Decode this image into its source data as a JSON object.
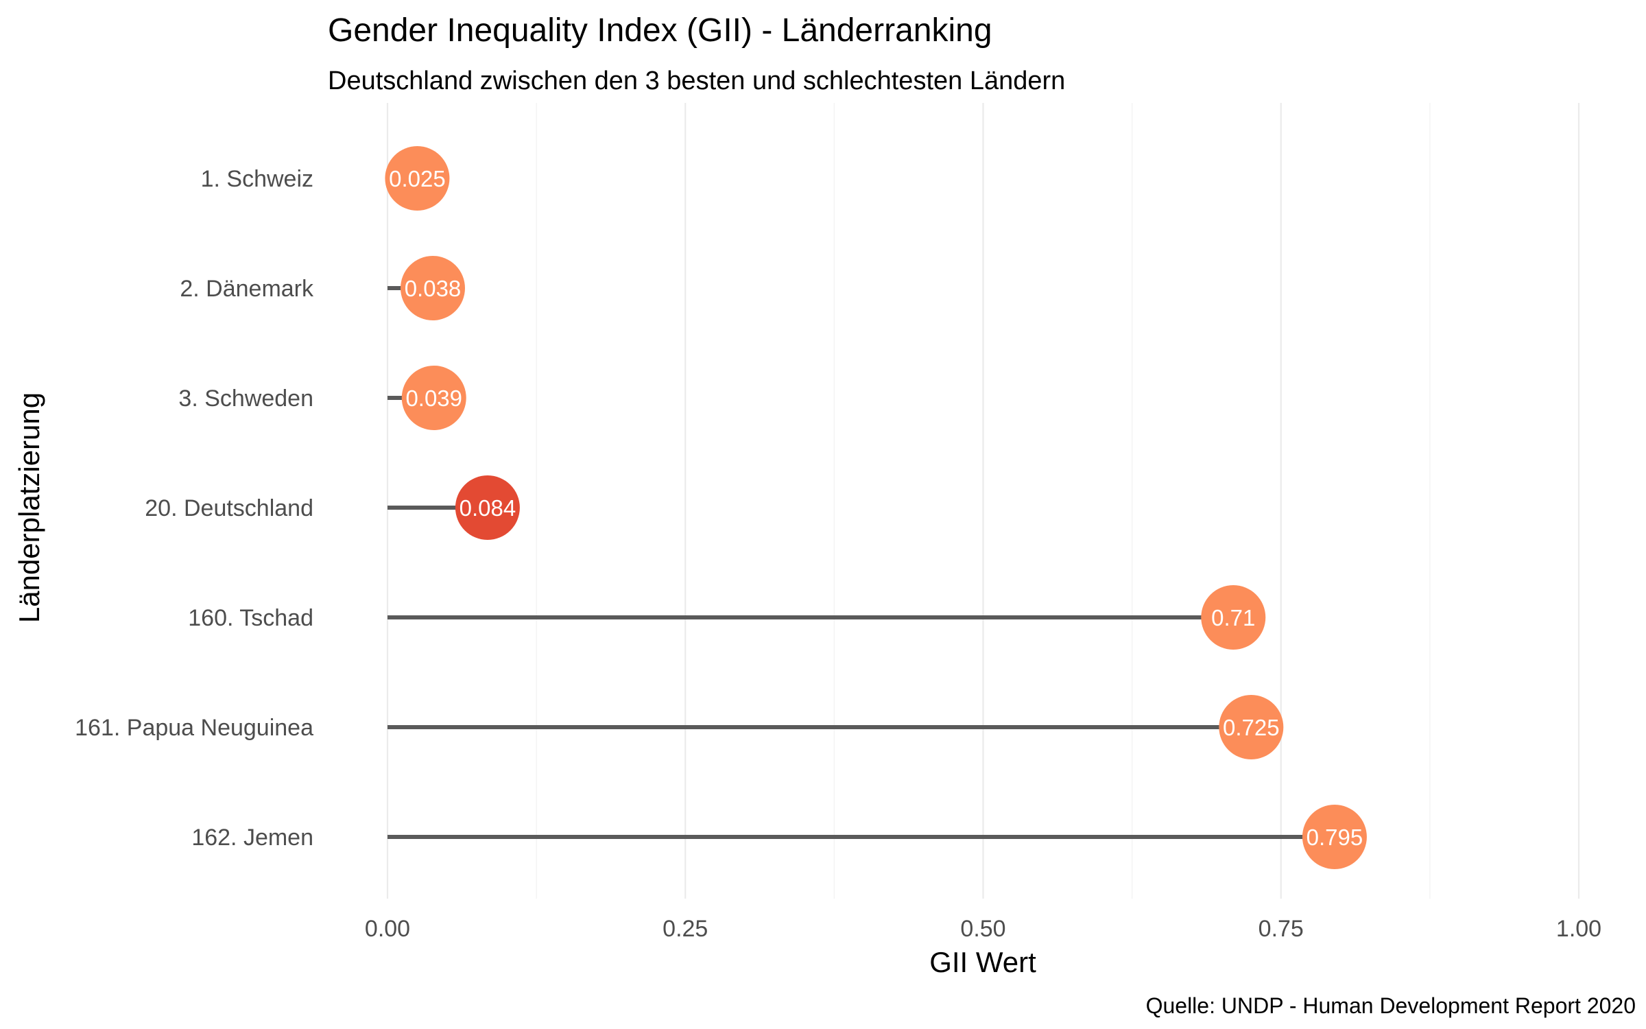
{
  "chart_data": {
    "type": "lollipop",
    "title": "Gender Inequality Index (GII) - Länderranking",
    "subtitle": "Deutschland zwischen den 3 besten und schlechtesten Ländern",
    "xlabel": "GII Wert",
    "ylabel": "Länderplatzierung",
    "caption": "Quelle: UNDP - Human Development Report 2020",
    "xlim": [
      0,
      1
    ],
    "x_ticks": [
      {
        "value": 0,
        "label": "0.00"
      },
      {
        "value": 0.25,
        "label": "0.25"
      },
      {
        "value": 0.5,
        "label": "0.50"
      },
      {
        "value": 0.75,
        "label": "0.75"
      },
      {
        "value": 1,
        "label": "1.00"
      }
    ],
    "x_minor_ticks": [
      0.125,
      0.375,
      0.625,
      0.875
    ],
    "grid": true,
    "legend": "none",
    "categories": [
      "1. Schweiz",
      "2. Dänemark",
      "3. Schweden",
      "20. Deutschland",
      "160. Tschad",
      "161. Papua Neuguinea",
      "162. Jemen"
    ],
    "values": [
      0.025,
      0.038,
      0.039,
      0.084,
      0.71,
      0.725,
      0.795
    ],
    "value_labels": [
      "0.025",
      "0.038",
      "0.039",
      "0.084",
      "0.71",
      "0.725",
      "0.795"
    ],
    "highlight_index": 3,
    "colors": {
      "point": "#fc8d59",
      "highlight": "#e34a33",
      "stem": "#5a5a5a",
      "value_text": "#ffffff"
    }
  }
}
